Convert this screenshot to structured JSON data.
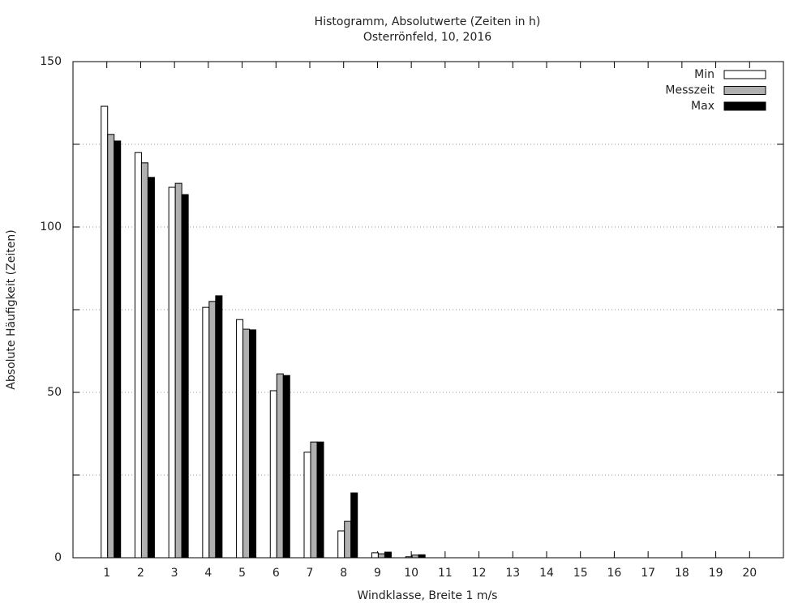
{
  "chart_data": {
    "type": "bar",
    "title": "Histogramm, Absolutwerte (Zeiten in h)",
    "subtitle": "Osterrönfeld, 10, 2016",
    "x_label": "Windklasse, Breite 1 m/s",
    "y_label": "Absolute Häufigkeit (Zeiten)",
    "x": [
      1,
      2,
      3,
      4,
      5,
      6,
      7,
      8,
      9,
      10,
      11,
      12,
      13,
      14,
      15,
      16,
      17,
      18,
      19,
      20
    ],
    "xlim": [
      0,
      21
    ],
    "xticks": [
      1,
      2,
      3,
      4,
      5,
      6,
      7,
      8,
      9,
      10,
      11,
      12,
      13,
      14,
      15,
      16,
      17,
      18,
      19,
      20
    ],
    "ylim": [
      0,
      150
    ],
    "yticks": [
      0,
      50,
      100,
      150
    ],
    "y_minor_ticks": [
      25,
      75,
      125
    ],
    "grid": true,
    "legend": "top-right",
    "series": [
      {
        "name": "Min",
        "color": "#ffffff",
        "values": [
          136.5,
          122.5,
          112,
          75.7,
          72,
          50.5,
          31.9,
          8.1,
          1.5,
          0.3,
          0,
          0,
          0,
          0,
          0,
          0,
          0,
          0,
          0,
          0
        ]
      },
      {
        "name": "Messzeit",
        "color": "#b0b0b0",
        "values": [
          128,
          119.4,
          113.2,
          77.5,
          69.1,
          55.6,
          35,
          11,
          1.2,
          0.8,
          0,
          0,
          0,
          0,
          0,
          0,
          0,
          0,
          0,
          0
        ]
      },
      {
        "name": "Max",
        "color": "#000000",
        "values": [
          126,
          115,
          109.8,
          79.2,
          68.9,
          55.1,
          35,
          19.6,
          1.7,
          0.9,
          0,
          0,
          0,
          0,
          0,
          0,
          0,
          0,
          0,
          0
        ]
      }
    ]
  }
}
